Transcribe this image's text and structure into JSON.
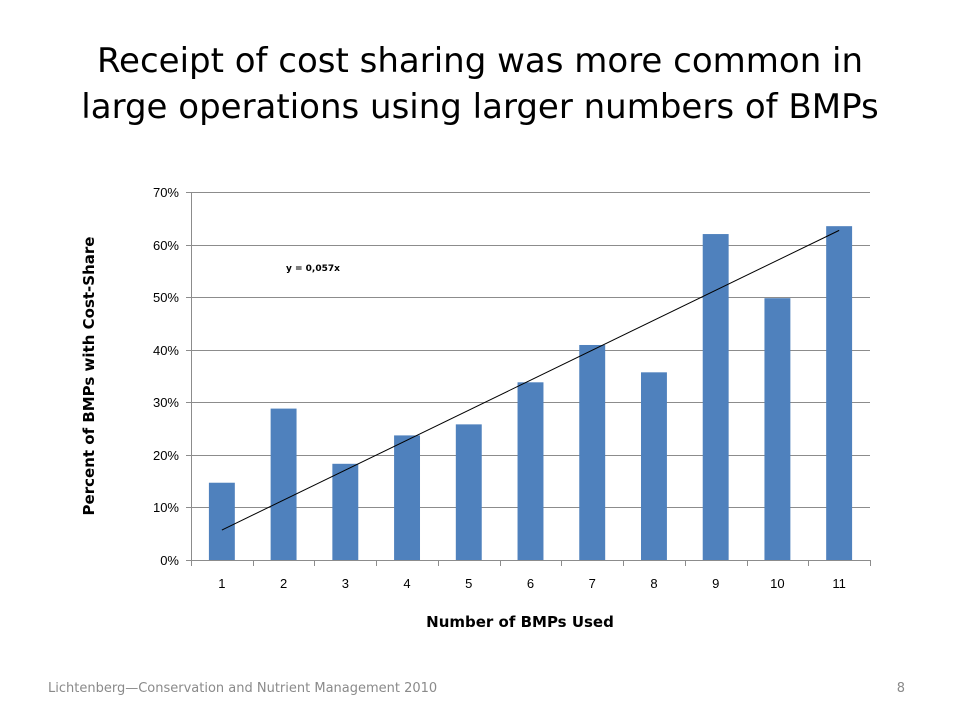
{
  "slide": {
    "title_line1": "Receipt of cost sharing was more common in",
    "title_line2": "large operations using larger numbers of BMPs",
    "footer_text": "Lichtenberg—Conservation and Nutrient Management 2010",
    "page_number": "8"
  },
  "chart_data": {
    "type": "bar",
    "categories": [
      "1",
      "2",
      "3",
      "4",
      "5",
      "6",
      "7",
      "8",
      "9",
      "10",
      "11"
    ],
    "values": [
      0.147,
      0.288,
      0.183,
      0.237,
      0.258,
      0.338,
      0.409,
      0.357,
      0.62,
      0.498,
      0.635
    ],
    "xlabel": "Number of BMPs Used",
    "ylabel": "Percent of BMPs with Cost-Share",
    "ylim": [
      0,
      0.7
    ],
    "yticks": [
      {
        "value": 0.0,
        "label": "0%"
      },
      {
        "value": 0.1,
        "label": "10%"
      },
      {
        "value": 0.2,
        "label": "20%"
      },
      {
        "value": 0.3,
        "label": "30%"
      },
      {
        "value": 0.4,
        "label": "40%"
      },
      {
        "value": 0.5,
        "label": "50%"
      },
      {
        "value": 0.6,
        "label": "60%"
      },
      {
        "value": 0.7,
        "label": "70%"
      }
    ],
    "trendline": {
      "type": "linear",
      "slope": 0.057,
      "equation_label": "y = 0,057x"
    },
    "grid": true,
    "legend": "none",
    "bar_color": "#4f81bd",
    "grid_color": "#8c8c8c",
    "trendline_color": "#000000"
  }
}
